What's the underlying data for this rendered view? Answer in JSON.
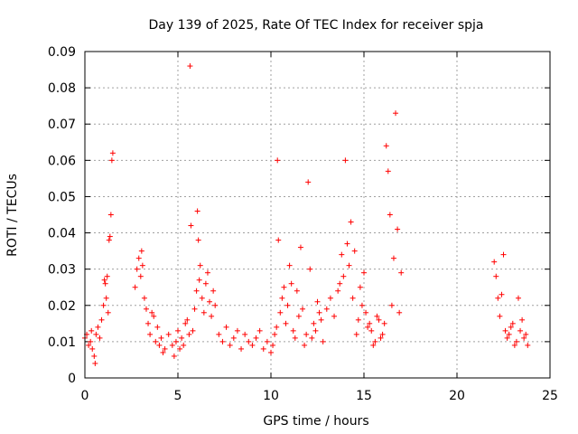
{
  "chart_data": {
    "type": "scatter",
    "title": "Day 139 of 2025, Rate Of TEC Index for receiver spja",
    "xlabel": "GPS time / hours",
    "ylabel": "ROTI / TECUs",
    "xlim": [
      0,
      25
    ],
    "ylim": [
      0,
      0.09
    ],
    "xticks": [
      "0",
      "5",
      "10",
      "15",
      "20",
      "25"
    ],
    "yticks": [
      "0",
      "0.01",
      "0.02",
      "0.03",
      "0.04",
      "0.05",
      "0.06",
      "0.07",
      "0.08",
      "0.09"
    ],
    "grid": true,
    "marker": "plus",
    "color": "#ff0000",
    "series": [
      {
        "x": [
          0.0,
          0.1,
          0.2,
          0.3,
          0.35,
          0.4,
          0.5,
          0.55,
          0.6,
          0.7,
          0.8,
          0.9,
          1.0,
          1.05,
          1.1,
          1.15,
          1.2,
          1.25,
          1.3,
          1.35,
          1.4,
          1.45,
          1.5,
          2.7,
          2.8,
          2.9,
          3.0,
          3.05,
          3.1,
          3.2,
          3.3,
          3.4,
          3.5,
          3.6,
          3.7,
          3.8,
          3.9,
          4.0,
          4.1,
          4.2,
          4.3,
          4.5,
          4.7,
          4.8,
          4.9,
          5.0,
          5.1,
          5.2,
          5.3,
          5.4,
          5.5,
          5.6,
          5.65,
          5.7,
          5.8,
          5.9,
          6.0,
          6.05,
          6.1,
          6.15,
          6.2,
          6.3,
          6.4,
          6.5,
          6.6,
          6.7,
          6.8,
          6.9,
          7.0,
          7.2,
          7.4,
          7.6,
          7.8,
          8.0,
          8.2,
          8.4,
          8.6,
          8.8,
          9.0,
          9.2,
          9.4,
          9.6,
          9.8,
          10.0,
          10.1,
          10.2,
          10.3,
          10.35,
          10.4,
          10.5,
          10.6,
          10.7,
          10.8,
          10.9,
          11.0,
          11.1,
          11.2,
          11.3,
          11.4,
          11.5,
          11.6,
          11.7,
          11.8,
          11.9,
          12.0,
          12.1,
          12.2,
          12.3,
          12.4,
          12.5,
          12.6,
          12.7,
          12.8,
          13.0,
          13.2,
          13.4,
          13.6,
          13.7,
          13.8,
          13.9,
          14.0,
          14.1,
          14.2,
          14.3,
          14.4,
          14.5,
          14.6,
          14.7,
          14.8,
          14.9,
          15.0,
          15.1,
          15.2,
          15.3,
          15.4,
          15.5,
          15.6,
          15.7,
          15.8,
          15.9,
          16.0,
          16.1,
          16.2,
          16.3,
          16.4,
          16.5,
          16.6,
          16.7,
          16.8,
          16.9,
          17.0,
          22.0,
          22.1,
          22.2,
          22.3,
          22.4,
          22.5,
          22.6,
          22.7,
          22.8,
          22.9,
          23.0,
          23.1,
          23.2,
          23.3,
          23.4,
          23.5,
          23.6,
          23.7,
          23.8
        ],
        "y": [
          0.011,
          0.012,
          0.009,
          0.01,
          0.013,
          0.008,
          0.006,
          0.004,
          0.012,
          0.014,
          0.011,
          0.016,
          0.02,
          0.027,
          0.026,
          0.022,
          0.028,
          0.018,
          0.038,
          0.039,
          0.045,
          0.06,
          0.062,
          0.025,
          0.03,
          0.033,
          0.028,
          0.035,
          0.031,
          0.022,
          0.019,
          0.015,
          0.012,
          0.018,
          0.017,
          0.01,
          0.014,
          0.009,
          0.011,
          0.007,
          0.008,
          0.012,
          0.009,
          0.006,
          0.01,
          0.013,
          0.008,
          0.011,
          0.009,
          0.015,
          0.016,
          0.012,
          0.086,
          0.042,
          0.013,
          0.019,
          0.024,
          0.046,
          0.038,
          0.027,
          0.031,
          0.022,
          0.018,
          0.026,
          0.029,
          0.021,
          0.017,
          0.024,
          0.02,
          0.012,
          0.01,
          0.014,
          0.009,
          0.011,
          0.013,
          0.008,
          0.012,
          0.01,
          0.009,
          0.011,
          0.013,
          0.008,
          0.01,
          0.007,
          0.009,
          0.012,
          0.014,
          0.06,
          0.038,
          0.018,
          0.022,
          0.025,
          0.015,
          0.02,
          0.031,
          0.026,
          0.013,
          0.011,
          0.024,
          0.017,
          0.036,
          0.019,
          0.009,
          0.012,
          0.054,
          0.03,
          0.011,
          0.015,
          0.013,
          0.021,
          0.018,
          0.016,
          0.01,
          0.019,
          0.022,
          0.017,
          0.024,
          0.026,
          0.034,
          0.028,
          0.06,
          0.037,
          0.031,
          0.043,
          0.022,
          0.035,
          0.012,
          0.016,
          0.025,
          0.02,
          0.029,
          0.018,
          0.014,
          0.015,
          0.013,
          0.009,
          0.01,
          0.017,
          0.016,
          0.011,
          0.012,
          0.015,
          0.064,
          0.057,
          0.045,
          0.02,
          0.033,
          0.073,
          0.041,
          0.018,
          0.029,
          0.032,
          0.028,
          0.022,
          0.017,
          0.023,
          0.034,
          0.013,
          0.011,
          0.012,
          0.014,
          0.015,
          0.009,
          0.01,
          0.022,
          0.013,
          0.016,
          0.011,
          0.012,
          0.009
        ]
      }
    ]
  }
}
